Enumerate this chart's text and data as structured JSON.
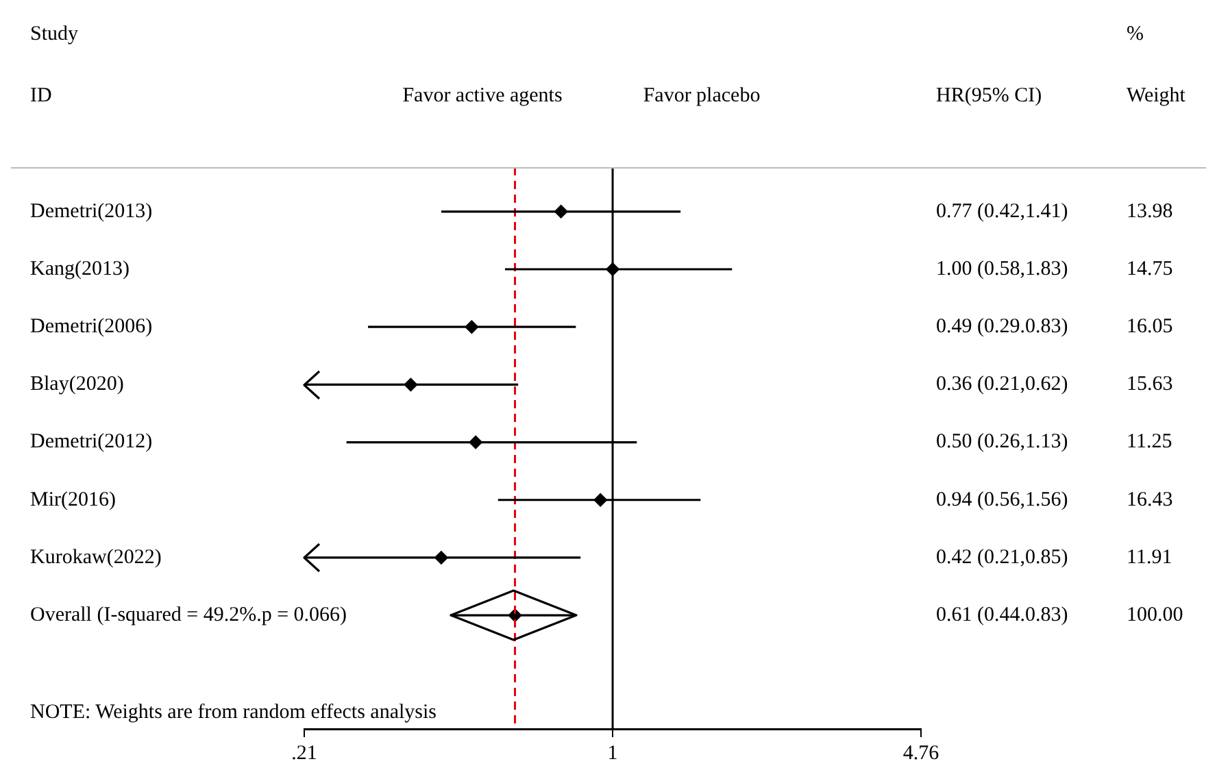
{
  "chart_data": {
    "type": "scatter",
    "orientation": "horizontal",
    "log": "x",
    "categories": [
      "Demetri(2013)",
      "Kang(2013)",
      "Demetri(2006)",
      "Blay(2020)",
      "Demetri(2012)",
      "Mir(2016)",
      "Kurokaw(2022)",
      "Overall (I-squared = 49.2%.p = 0.066)"
    ],
    "series": [
      {
        "color": "#000000",
        "marker": "diamond",
        "values": [
          0.77,
          1.0,
          0.49,
          0.36,
          0.5,
          0.94,
          0.42,
          0.61
        ],
        "errors": [
          [
            0.42,
            1.41
          ],
          [
            0.58,
            1.83
          ],
          [
            0.29,
            0.83
          ],
          [
            0.21,
            0.62
          ],
          [
            0.26,
            1.13
          ],
          [
            0.56,
            1.56
          ],
          [
            0.21,
            0.85
          ],
          [
            0.44,
            0.83
          ]
        ],
        "value_labels": [
          "0.77 (0.42,1.41)",
          "1.00 (0.58,1.83)",
          "0.49 (0.29.0.83)",
          "0.36 (0.21,0.62)",
          "0.50 (0.26,1.13)",
          "0.94 (0.56,1.56)",
          "0.42 (0.21,0.85)",
          "0.61 (0.44.0.83)"
        ]
      }
    ],
    "xlim": [
      0.21,
      4.76
    ],
    "xticks": [
      {
        "value": 0.21,
        "label": ".21"
      },
      1,
      4.76
    ],
    "ref_lines": [
      {
        "axis": "x",
        "value": 1,
        "color": "#000000",
        "line_style": "solid"
      },
      {
        "axis": "x",
        "value": 0.61,
        "color": "#e8000b",
        "line_style": "dashed"
      }
    ],
    "grid": false,
    "legend": false,
    "annotations": [
      "Study",
      "ID",
      "Favor active agents",
      "Favor placebo",
      "HR(95% CI)",
      "%",
      "Weight",
      "NOTE: Weights are from random effects analysis",
      "13.98",
      "14.75",
      "16.05",
      "15.63",
      "11.25",
      "16.43",
      "11.91",
      "100.00"
    ]
  }
}
